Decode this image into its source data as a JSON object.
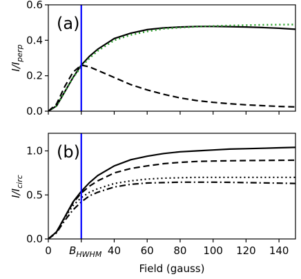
{
  "chart_data": [
    {
      "panel_label": "(a)",
      "type": "line",
      "ylabel_main": "I/I",
      "ylabel_sub": "perp",
      "xlim": [
        0,
        150
      ],
      "ylim": [
        0,
        0.6
      ],
      "yticks": [
        "0.0",
        "0.2",
        "0.4",
        "0.6"
      ],
      "xticks_visible": false,
      "vline": {
        "x": 20,
        "color": "#0000ff"
      },
      "series": [
        {
          "style": "solid",
          "color": "#000000",
          "x": [
            0,
            5,
            10,
            15,
            20,
            25,
            30,
            40,
            50,
            60,
            70,
            80,
            90,
            100,
            110,
            120,
            130,
            140,
            150
          ],
          "values": [
            0,
            0.03,
            0.11,
            0.19,
            0.26,
            0.31,
            0.35,
            0.41,
            0.44,
            0.46,
            0.47,
            0.475,
            0.478,
            0.478,
            0.477,
            0.475,
            0.472,
            0.468,
            0.462
          ]
        },
        {
          "style": "dotted",
          "color": "#2ca02c",
          "x": [
            0,
            5,
            10,
            15,
            20,
            25,
            30,
            40,
            50,
            60,
            70,
            80,
            90,
            100,
            110,
            120,
            130,
            140,
            150
          ],
          "values": [
            0,
            0.03,
            0.11,
            0.19,
            0.25,
            0.3,
            0.34,
            0.4,
            0.43,
            0.45,
            0.465,
            0.472,
            0.477,
            0.48,
            0.483,
            0.485,
            0.487,
            0.488,
            0.489
          ]
        },
        {
          "style": "dashed",
          "color": "#000000",
          "x": [
            0,
            5,
            10,
            15,
            20,
            25,
            30,
            40,
            50,
            60,
            70,
            80,
            90,
            100,
            110,
            120,
            130,
            140,
            150
          ],
          "values": [
            0,
            0.04,
            0.14,
            0.22,
            0.26,
            0.25,
            0.23,
            0.19,
            0.15,
            0.12,
            0.095,
            0.075,
            0.06,
            0.05,
            0.042,
            0.036,
            0.031,
            0.027,
            0.024
          ]
        }
      ]
    },
    {
      "panel_label": "(b)",
      "type": "line",
      "ylabel_main": "I/I",
      "ylabel_sub": "circ",
      "xlabel": "Field (gauss)",
      "xlim": [
        0,
        150
      ],
      "ylim": [
        0,
        1.2
      ],
      "yticks": [
        "0.0",
        "0.5",
        "1.0"
      ],
      "xticks": [
        "0",
        "20",
        "40",
        "60",
        "80",
        "100",
        "120",
        "140"
      ],
      "xtick_special": {
        "x": 20,
        "main": "B",
        "sub": "HWHM"
      },
      "vline": {
        "x": 20,
        "color": "#0000ff"
      },
      "series": [
        {
          "style": "solid",
          "color": "#000000",
          "x": [
            0,
            5,
            10,
            15,
            20,
            25,
            30,
            40,
            50,
            60,
            70,
            80,
            90,
            100,
            110,
            120,
            130,
            140,
            150
          ],
          "values": [
            0,
            0.08,
            0.25,
            0.42,
            0.54,
            0.64,
            0.72,
            0.83,
            0.9,
            0.94,
            0.97,
            0.99,
            1.0,
            1.01,
            1.02,
            1.025,
            1.03,
            1.035,
            1.04
          ]
        },
        {
          "style": "dashed",
          "color": "#000000",
          "x": [
            0,
            5,
            10,
            15,
            20,
            25,
            30,
            40,
            50,
            60,
            70,
            80,
            90,
            100,
            110,
            120,
            130,
            140,
            150
          ],
          "values": [
            0,
            0.08,
            0.25,
            0.41,
            0.52,
            0.6,
            0.66,
            0.75,
            0.8,
            0.83,
            0.855,
            0.87,
            0.88,
            0.885,
            0.888,
            0.89,
            0.892,
            0.893,
            0.894
          ]
        },
        {
          "style": "dotted",
          "color": "#000000",
          "x": [
            0,
            5,
            10,
            15,
            20,
            25,
            30,
            40,
            50,
            60,
            70,
            80,
            90,
            100,
            110,
            120,
            130,
            140,
            150
          ],
          "values": [
            0,
            0.08,
            0.24,
            0.38,
            0.47,
            0.53,
            0.57,
            0.63,
            0.66,
            0.68,
            0.69,
            0.695,
            0.7,
            0.7,
            0.7,
            0.7,
            0.7,
            0.7,
            0.7
          ]
        },
        {
          "style": "dashdot",
          "color": "#000000",
          "x": [
            0,
            5,
            10,
            15,
            20,
            25,
            30,
            40,
            50,
            60,
            70,
            80,
            90,
            100,
            110,
            120,
            130,
            140,
            150
          ],
          "values": [
            0,
            0.07,
            0.21,
            0.33,
            0.42,
            0.49,
            0.53,
            0.59,
            0.62,
            0.635,
            0.64,
            0.645,
            0.645,
            0.645,
            0.643,
            0.64,
            0.637,
            0.634,
            0.63
          ]
        }
      ]
    }
  ]
}
